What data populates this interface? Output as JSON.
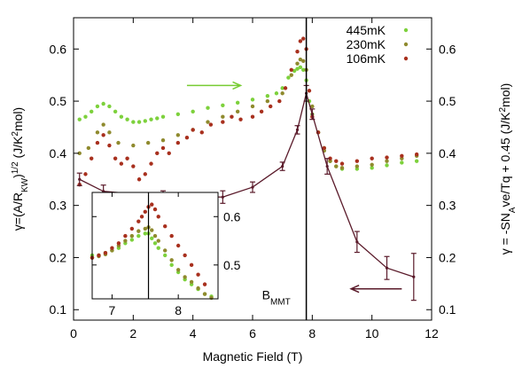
{
  "chart_data": [
    {
      "type": "scatter",
      "xlabel": "Magnetic Field (T)",
      "ylabel_left": "γ=(A/R_KW)^1/2 (J/K²mol)",
      "ylabel_right": "γ = -SN_Ave/Tq + 0.45  (J/K²mol)",
      "xlim": [
        0,
        12
      ],
      "ylim": [
        0.08,
        0.66
      ],
      "x_ticks": [
        0,
        2,
        4,
        6,
        8,
        10,
        12
      ],
      "y_ticks": [
        0.1,
        0.2,
        0.3,
        0.4,
        0.5,
        0.6
      ],
      "legend_position": "top-right",
      "vertical_line": {
        "x": 7.8,
        "label": "B",
        "label_sub": "MMT"
      },
      "arrows": [
        {
          "direction": "right",
          "axis": "right",
          "color": "#77cc33",
          "x": [
            3.8,
            5.6
          ],
          "y": 0.53
        },
        {
          "direction": "left",
          "axis": "left",
          "color": "#5a1a2a",
          "x": [
            11.0,
            9.3
          ],
          "y": 0.14
        }
      ],
      "series": [
        {
          "name": "445mK",
          "color": "#7dd13c",
          "style": "points",
          "axis": "right",
          "x": [
            0.2,
            0.4,
            0.6,
            0.8,
            1.0,
            1.2,
            1.4,
            1.6,
            1.8,
            2.0,
            2.2,
            2.4,
            2.6,
            2.8,
            3.0,
            3.5,
            4.0,
            4.5,
            5.0,
            5.5,
            6.0,
            6.5,
            6.8,
            7.0,
            7.2,
            7.4,
            7.5,
            7.6,
            7.7,
            7.8,
            7.9,
            8.0,
            8.2,
            8.4,
            8.6,
            8.8,
            9.0,
            9.5,
            10.0,
            10.5,
            11.0,
            11.5
          ],
          "y": [
            0.465,
            0.47,
            0.48,
            0.49,
            0.495,
            0.49,
            0.48,
            0.47,
            0.465,
            0.46,
            0.46,
            0.462,
            0.465,
            0.467,
            0.47,
            0.475,
            0.48,
            0.487,
            0.492,
            0.497,
            0.503,
            0.51,
            0.515,
            0.525,
            0.545,
            0.558,
            0.562,
            0.565,
            0.56,
            0.54,
            0.5,
            0.475,
            0.44,
            0.41,
            0.385,
            0.375,
            0.37,
            0.37,
            0.372,
            0.377,
            0.382,
            0.385
          ]
        },
        {
          "name": "230mK",
          "color": "#8f8a2e",
          "style": "points",
          "axis": "right",
          "x": [
            0.2,
            0.5,
            0.8,
            1.0,
            1.2,
            1.5,
            2.0,
            2.5,
            3.0,
            3.5,
            4.0,
            4.5,
            5.0,
            5.5,
            6.0,
            6.5,
            7.0,
            7.3,
            7.5,
            7.6,
            7.7,
            7.8,
            8.0,
            8.2,
            8.4,
            8.6,
            8.8,
            9.0,
            9.5,
            10.0,
            10.5,
            11.0,
            11.5
          ],
          "y": [
            0.4,
            0.41,
            0.44,
            0.455,
            0.44,
            0.42,
            0.415,
            0.42,
            0.425,
            0.435,
            0.445,
            0.46,
            0.47,
            0.48,
            0.49,
            0.5,
            0.515,
            0.55,
            0.572,
            0.58,
            0.577,
            0.56,
            0.49,
            0.44,
            0.405,
            0.385,
            0.375,
            0.372,
            0.375,
            0.378,
            0.385,
            0.39,
            0.395
          ]
        },
        {
          "name": "106mK",
          "color": "#a8301e",
          "style": "points",
          "axis": "right",
          "x": [
            0.2,
            0.4,
            0.6,
            0.8,
            1.0,
            1.2,
            1.4,
            1.6,
            1.8,
            2.0,
            2.2,
            2.4,
            2.6,
            2.8,
            3.0,
            3.2,
            3.5,
            3.8,
            4.0,
            4.3,
            4.6,
            5.0,
            5.3,
            5.6,
            6.0,
            6.3,
            6.6,
            6.9,
            7.1,
            7.3,
            7.5,
            7.6,
            7.7,
            7.8,
            7.9,
            8.0,
            8.2,
            8.4,
            8.6,
            8.8,
            9.0,
            9.5,
            10.0,
            10.5,
            11.0,
            11.5
          ],
          "y": [
            0.34,
            0.36,
            0.39,
            0.42,
            0.435,
            0.415,
            0.39,
            0.38,
            0.39,
            0.375,
            0.35,
            0.36,
            0.38,
            0.4,
            0.41,
            0.4,
            0.42,
            0.43,
            0.445,
            0.44,
            0.455,
            0.46,
            0.47,
            0.465,
            0.47,
            0.48,
            0.49,
            0.5,
            0.525,
            0.56,
            0.595,
            0.615,
            0.62,
            0.6,
            0.52,
            0.47,
            0.44,
            0.41,
            0.39,
            0.385,
            0.38,
            0.385,
            0.39,
            0.392,
            0.395,
            0.398
          ]
        },
        {
          "name": "",
          "color": "#5a1a2a",
          "style": "line-errorbars",
          "axis": "left",
          "x": [
            0.2,
            1.0,
            3.0,
            5.0,
            6.0,
            7.0,
            7.5,
            7.8,
            8.0,
            8.5,
            9.5,
            10.5,
            11.4
          ],
          "y": [
            0.35,
            0.327,
            0.318,
            0.316,
            0.335,
            0.375,
            0.445,
            0.515,
            0.475,
            0.375,
            0.23,
            0.18,
            0.163
          ],
          "err": [
            0.012,
            0.012,
            0.01,
            0.012,
            0.01,
            0.008,
            0.008,
            0.015,
            0.01,
            0.015,
            0.02,
            0.022,
            0.045
          ]
        }
      ]
    },
    {
      "type": "scatter",
      "placement": "inset",
      "xlim": [
        6.7,
        8.6
      ],
      "ylim": [
        0.43,
        0.65
      ],
      "x_ticks": [
        7,
        8
      ],
      "y_ticks": [
        0.5,
        0.6
      ],
      "vertical_line": {
        "x": 7.55
      },
      "series": [
        {
          "name": "445mK",
          "color": "#7dd13c",
          "x": [
            6.7,
            6.8,
            6.9,
            7.0,
            7.1,
            7.2,
            7.3,
            7.4,
            7.5,
            7.55,
            7.6,
            7.65,
            7.7,
            7.8,
            7.9,
            8.0,
            8.1,
            8.2,
            8.3,
            8.4,
            8.5
          ],
          "y": [
            0.52,
            0.52,
            0.525,
            0.53,
            0.535,
            0.545,
            0.552,
            0.56,
            0.565,
            0.565,
            0.555,
            0.545,
            0.535,
            0.52,
            0.5,
            0.485,
            0.47,
            0.46,
            0.45,
            0.44,
            0.435
          ]
        },
        {
          "name": "230mK",
          "color": "#8f8a2e",
          "x": [
            6.7,
            6.8,
            6.9,
            7.0,
            7.1,
            7.2,
            7.3,
            7.4,
            7.5,
            7.55,
            7.6,
            7.65,
            7.7,
            7.8,
            7.9,
            8.0,
            8.1,
            8.2,
            8.3,
            8.4,
            8.5
          ],
          "y": [
            0.515,
            0.518,
            0.522,
            0.53,
            0.54,
            0.55,
            0.56,
            0.57,
            0.575,
            0.578,
            0.572,
            0.56,
            0.55,
            0.53,
            0.51,
            0.49,
            0.475,
            0.465,
            0.452,
            0.44,
            0.432
          ]
        },
        {
          "name": "106mK",
          "color": "#a8301e",
          "x": [
            6.7,
            6.8,
            6.9,
            7.0,
            7.1,
            7.2,
            7.3,
            7.4,
            7.45,
            7.5,
            7.55,
            7.6,
            7.65,
            7.7,
            7.8,
            7.9,
            8.0,
            8.1,
            8.2,
            8.3,
            8.4
          ],
          "y": [
            0.515,
            0.52,
            0.525,
            0.535,
            0.545,
            0.56,
            0.575,
            0.59,
            0.6,
            0.61,
            0.62,
            0.625,
            0.615,
            0.6,
            0.58,
            0.56,
            0.54,
            0.52,
            0.5,
            0.48,
            0.46
          ]
        }
      ]
    }
  ]
}
